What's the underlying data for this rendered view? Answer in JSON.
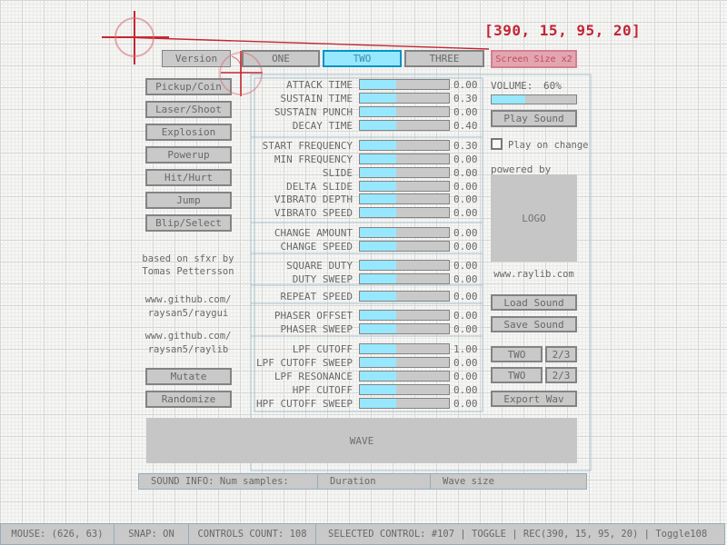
{
  "annotation": {
    "coords_text": "[390, 15, 95, 20]"
  },
  "topbar": {
    "version_label": "Version",
    "tabs": [
      "ONE",
      "TWO",
      "THREE"
    ],
    "active_tab": "TWO",
    "screen_size_label": "Screen Size x2"
  },
  "left_panel": {
    "preset_buttons": [
      "Pickup/Coin",
      "Laser/Shoot",
      "Explosion",
      "Powerup",
      "Hit/Hurt",
      "Jump",
      "Blip/Select"
    ],
    "credit_lines": [
      "based on sfxr by",
      "Tomas Pettersson"
    ],
    "link_lines": [
      "www.github.com/",
      "raysan5/raygui",
      "www.github.com/",
      "raysan5/raylib"
    ],
    "mutate_label": "Mutate",
    "randomize_label": "Randomize"
  },
  "sliders": {
    "fill_pct": 41,
    "groups": [
      {
        "rows": [
          {
            "label": "ATTACK TIME",
            "value": "0.00"
          },
          {
            "label": "SUSTAIN TIME",
            "value": "0.30"
          },
          {
            "label": "SUSTAIN PUNCH",
            "value": "0.00"
          },
          {
            "label": "DECAY TIME",
            "value": "0.40"
          }
        ]
      },
      {
        "rows": [
          {
            "label": "START FREQUENCY",
            "value": "0.30"
          },
          {
            "label": "MIN FREQUENCY",
            "value": "0.00"
          },
          {
            "label": "SLIDE",
            "value": "0.00"
          },
          {
            "label": "DELTA SLIDE",
            "value": "0.00"
          },
          {
            "label": "VIBRATO DEPTH",
            "value": "0.00"
          },
          {
            "label": "VIBRATO SPEED",
            "value": "0.00"
          }
        ]
      },
      {
        "rows": [
          {
            "label": "CHANGE AMOUNT",
            "value": "0.00"
          },
          {
            "label": "CHANGE SPEED",
            "value": "0.00"
          }
        ]
      },
      {
        "rows": [
          {
            "label": "SQUARE DUTY",
            "value": "0.00"
          },
          {
            "label": "DUTY SWEEP",
            "value": "0.00"
          }
        ]
      },
      {
        "rows": [
          {
            "label": "REPEAT SPEED",
            "value": "0.00"
          }
        ]
      },
      {
        "rows": [
          {
            "label": "PHASER OFFSET",
            "value": "0.00"
          },
          {
            "label": "PHASER SWEEP",
            "value": "0.00"
          }
        ]
      },
      {
        "rows": [
          {
            "label": "LPF CUTOFF",
            "value": "1.00"
          },
          {
            "label": "LPF CUTOFF SWEEP",
            "value": "0.00"
          },
          {
            "label": "LPF RESONANCE",
            "value": "0.00"
          },
          {
            "label": "HPF CUTOFF",
            "value": "0.00"
          },
          {
            "label": "HPF CUTOFF SWEEP",
            "value": "0.00"
          }
        ]
      }
    ]
  },
  "right_panel": {
    "volume_label": "VOLUME:",
    "volume_value": "60%",
    "volume_fill_pct": 40,
    "play_sound_label": "Play Sound",
    "play_on_change_label": "Play on change",
    "powered_by_label": "powered by",
    "logo_label": "LOGO",
    "raylib_url": "www.raylib.com",
    "load_sound_label": "Load Sound",
    "save_sound_label": "Save Sound",
    "type_rows": [
      {
        "value": "TWO",
        "page": "2/3"
      },
      {
        "value": "TWO",
        "page": "2/3"
      }
    ],
    "export_wav_label": "Export Wav"
  },
  "wave_label": "WAVE",
  "sound_info_cells": [
    "SOUND INFO: Num samples:",
    "Duration",
    "Wave size"
  ],
  "statusbar_cells": [
    "MOUSE: (626, 63)",
    "SNAP: ON",
    "CONTROLS COUNT: 108",
    "SELECTED CONTROL: #107 | TOGGLE | REC(390, 15, 95, 20) | Toggle108"
  ],
  "colors": {
    "accent_cyan": "#97e8ff",
    "accent_cyan_border": "#0492c7",
    "selected_pink": "#e3a5b1",
    "annotation_red": "#c22634",
    "button_gray": "#c9c9c9",
    "border_gray": "#838383",
    "text_gray": "#686868",
    "guide_blue": "#a8c2cc"
  }
}
